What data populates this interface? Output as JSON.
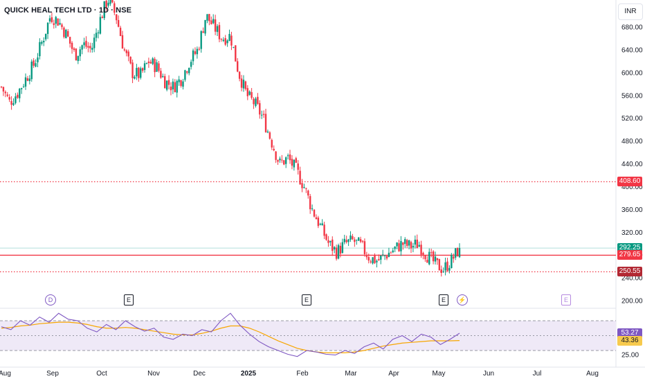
{
  "header": {
    "title": "QUICK HEAL TECH LTD · 1D · NSE",
    "currency": "INR"
  },
  "price_axis": {
    "ticks": [
      "680.00",
      "640.00",
      "600.00",
      "560.00",
      "520.00",
      "480.00",
      "440.00",
      "400.00",
      "360.00",
      "320.00",
      "280.00",
      "240.00",
      "200.00"
    ],
    "tags": [
      {
        "label": "408.60",
        "value": 408.6,
        "color": "#f23645"
      },
      {
        "label": "292.25",
        "value": 292.25,
        "color": "#089981"
      },
      {
        "label": "279.65",
        "value": 279.65,
        "color": "#f23645"
      },
      {
        "label": "250.55",
        "value": 250.55,
        "color": "#b22833"
      }
    ]
  },
  "rsi_axis": {
    "ticks": [
      "25.00"
    ],
    "tags": [
      {
        "label": "53.27",
        "value": 53.27,
        "color": "#7e57c2"
      },
      {
        "label": "43.36",
        "value": 43.36,
        "color": "#f7ca4d"
      }
    ]
  },
  "time_axis": {
    "labels": [
      "Aug",
      "Sep",
      "Oct",
      "Nov",
      "Dec",
      "2025",
      "Feb",
      "Mar",
      "Apr",
      "May",
      "Jun",
      "Jul",
      "Aug"
    ]
  },
  "events": [
    {
      "type": "D",
      "label": "D"
    },
    {
      "type": "E",
      "label": "E"
    },
    {
      "type": "E",
      "label": "E"
    },
    {
      "type": "E",
      "label": "E"
    },
    {
      "type": "bolt",
      "label": "⚡"
    },
    {
      "type": "E",
      "label": "E",
      "future": true
    }
  ],
  "colors": {
    "up": "#089981",
    "down": "#f23645",
    "rsi": "#7e57c2",
    "rsi_ma": "#f7a600",
    "rsi_band": "#efe9f7"
  },
  "chart_data": [
    {
      "type": "candlestick",
      "title": "QUICK HEAL TECH LTD · 1D · NSE",
      "y_unit": "INR",
      "ylim": [
        200,
        720
      ],
      "x": [
        "2024-08",
        "2024-09",
        "2024-10",
        "2024-11",
        "2024-12",
        "2025-01",
        "2025-02",
        "2025-03",
        "2025-04",
        "2025-05"
      ],
      "close_path": [
        575,
        548,
        565,
        590,
        615,
        655,
        700,
        690,
        665,
        630,
        650,
        640,
        690,
        730,
        700,
        640,
        600,
        595,
        620,
        610,
        585,
        575,
        590,
        620,
        640,
        700,
        680,
        660,
        665,
        600,
        560,
        545,
        520,
        480,
        440,
        450,
        430,
        400,
        360,
        330,
        300,
        285,
        300,
        305,
        295,
        275,
        270,
        280,
        290,
        300,
        295,
        300,
        280,
        265,
        255,
        270,
        292.25
      ],
      "levels": [
        {
          "label": "408.60",
          "value": 408.6,
          "style": "dotted",
          "color": "#f23645"
        },
        {
          "label": "279.65",
          "value": 279.65,
          "style": "solid",
          "color": "#f23645"
        },
        {
          "label": "250.55",
          "value": 250.55,
          "style": "dotted",
          "color": "#f23645"
        },
        {
          "label": "292.25",
          "value": 292.25,
          "style": "solid",
          "color": "#b2dfdb"
        }
      ]
    },
    {
      "type": "line",
      "title": "",
      "series": [
        {
          "values": [
            62,
            58,
            70,
            64,
            75,
            68,
            80,
            72,
            70,
            60,
            55,
            65,
            58,
            70,
            62,
            56,
            60,
            48,
            45,
            52,
            50,
            58,
            55,
            70,
            80,
            64,
            52,
            42,
            35,
            30,
            25,
            22,
            30,
            28,
            25,
            24,
            30,
            26,
            35,
            40,
            32,
            45,
            50,
            42,
            52,
            48,
            38,
            45,
            53.27
          ]
        },
        {
          "values": [
            60,
            61,
            63,
            64,
            66,
            67,
            68,
            68,
            67,
            65,
            62,
            60,
            60,
            61,
            60,
            58,
            56,
            54,
            52,
            51,
            51,
            53,
            56,
            60,
            63,
            63,
            60,
            55,
            49,
            43,
            38,
            33,
            30,
            28,
            27,
            27,
            27,
            28,
            30,
            33,
            36,
            38,
            40,
            41,
            42,
            43,
            43,
            43,
            43.36
          ]
        }
      ],
      "ylim": [
        15,
        85
      ],
      "reference_lines": [
        70,
        50,
        30
      ]
    }
  ]
}
